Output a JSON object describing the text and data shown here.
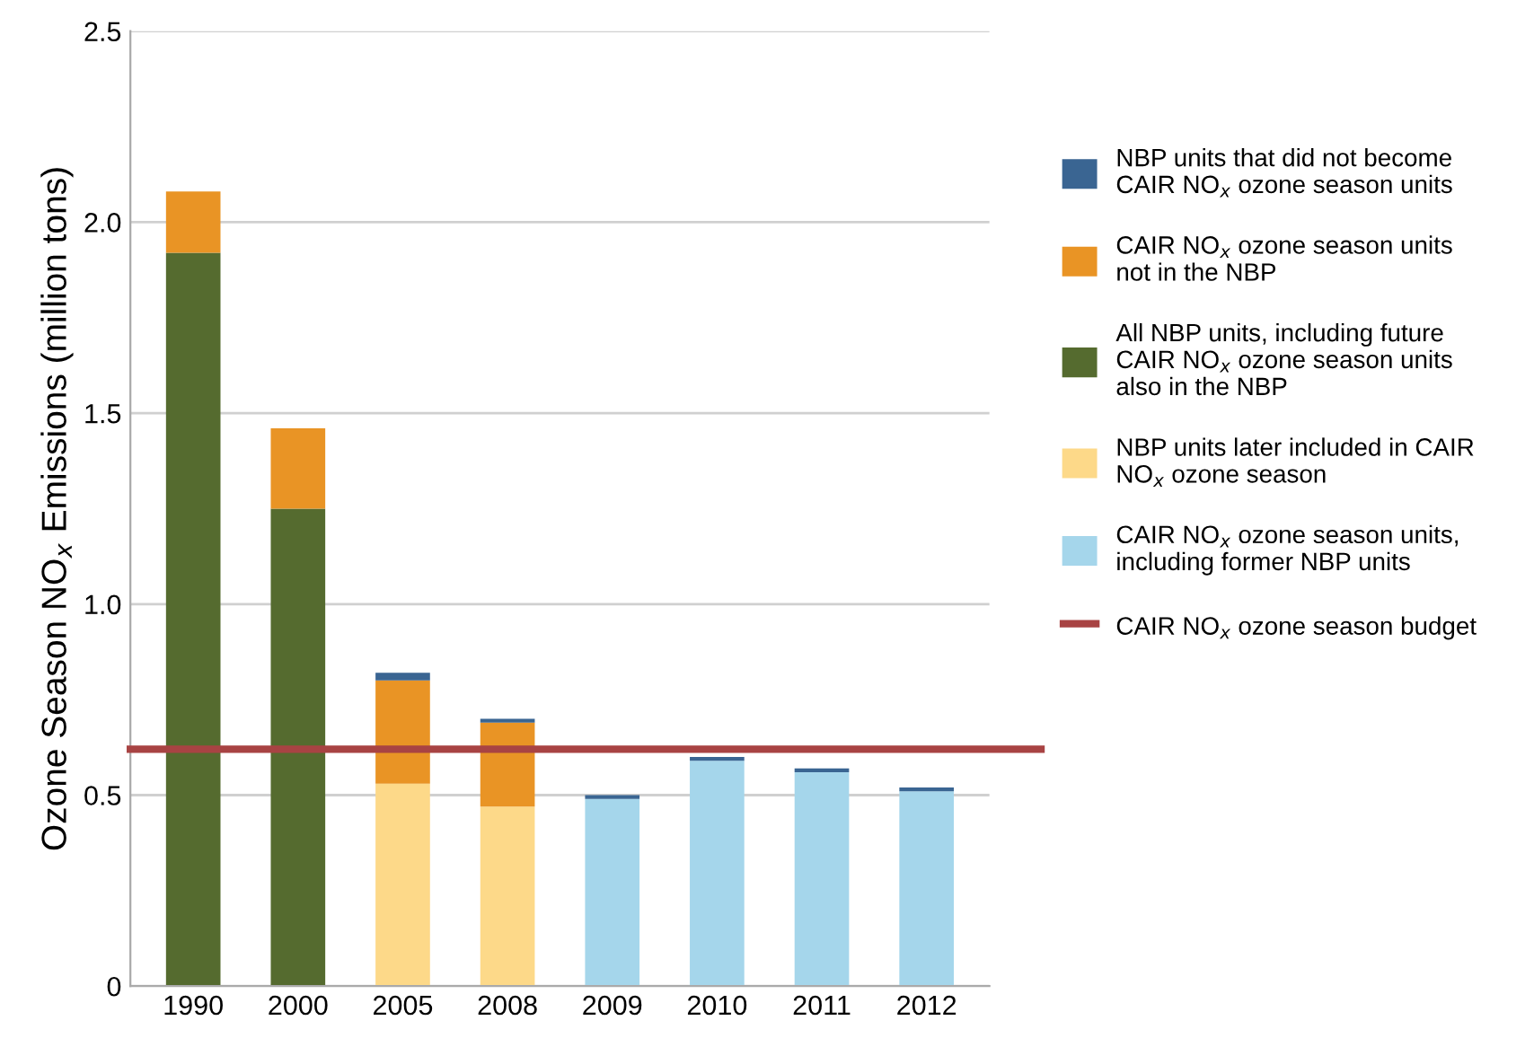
{
  "chart_data": {
    "type": "bar",
    "stacked": true,
    "ylabel": "Ozone Season NO$_{x}$ Emissions (million tons)",
    "categories": [
      "1990",
      "2000",
      "2005",
      "2008",
      "2009",
      "2010",
      "2011",
      "2012"
    ],
    "series": [
      {
        "name": "CAIR NO$_{x}$ ozone season units,\nincluding former NBP units",
        "color": "#a5d6eb",
        "values": [
          null,
          null,
          null,
          null,
          0.49,
          0.59,
          0.56,
          0.51
        ]
      },
      {
        "name": "NBP units later included in CAIR\nNO$_{x}$ ozone season",
        "color": "#fdd989",
        "values": [
          null,
          null,
          0.53,
          0.47,
          null,
          null,
          null,
          null
        ]
      },
      {
        "name": "All NBP units, including future\nCAIR NO$_{x}$ ozone season units\nalso in the NBP",
        "color": "#556b2f",
        "values": [
          1.92,
          1.25,
          null,
          null,
          null,
          null,
          null,
          null
        ]
      },
      {
        "name": "CAIR NO$_{x}$ ozone season units\nnot in the NBP",
        "color": "#e99425",
        "values": [
          0.16,
          0.21,
          0.27,
          0.22,
          null,
          null,
          null,
          null
        ]
      },
      {
        "name": "NBP units that did not become\nCAIR NO$_{x}$ ozone season units",
        "color": "#3a6592",
        "values": [
          null,
          null,
          0.02,
          0.01,
          0.01,
          0.01,
          0.01,
          0.01
        ]
      }
    ],
    "ref_lines": [
      {
        "axis": "y",
        "value": 0.62,
        "label": "CAIR NO$_{x}$ ozone season budget",
        "color": "#a84343",
        "line_style": "solid"
      }
    ],
    "ylim": [
      0,
      2.5
    ],
    "yticks": [
      0,
      0.5,
      {
        "value": 1,
        "label": "1.0"
      },
      1.5,
      {
        "value": 2,
        "label": "2.0"
      },
      2.5
    ],
    "grid": "y",
    "legend": "right"
  }
}
